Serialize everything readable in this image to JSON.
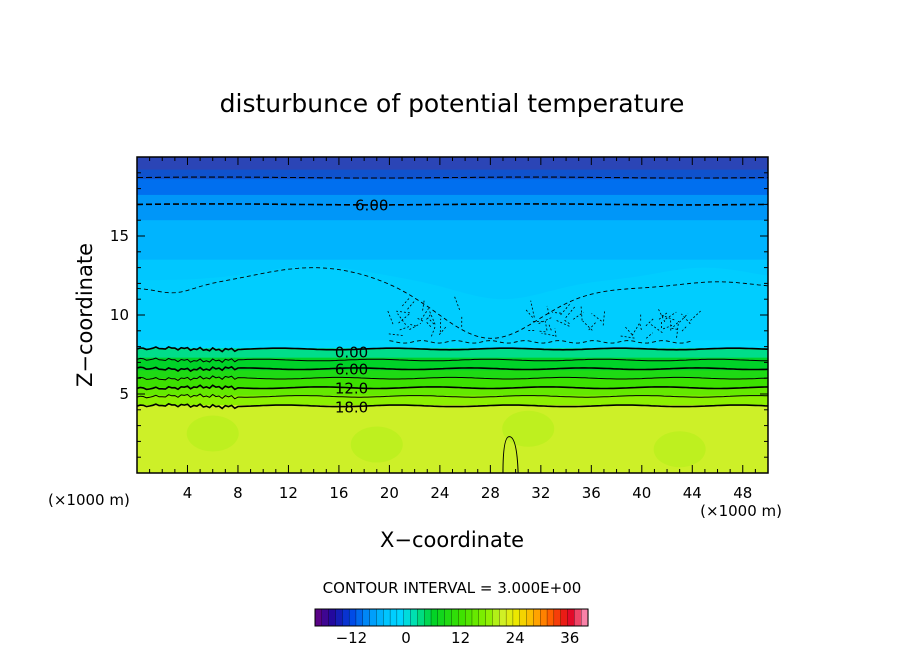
{
  "chart_data": {
    "type": "heatmap",
    "title": "disturbunce of potential temperature",
    "xlabel": "X−coordinate",
    "ylabel": "Z−coordinate",
    "x_unit_left": "(×1000 m)",
    "x_unit_right": "(×1000 m)",
    "xlim": [
      0,
      50
    ],
    "ylim": [
      0,
      20
    ],
    "x_ticks": [
      4,
      8,
      12,
      16,
      20,
      24,
      28,
      32,
      36,
      40,
      44,
      48
    ],
    "y_ticks": [
      5,
      10,
      15
    ],
    "contour_interval_text": "CONTOUR INTERVAL = 3.000E+00",
    "contour_labels": [
      {
        "text": "6.00",
        "x": 18.6,
        "z": 17.0
      },
      {
        "text": "0.00",
        "x": 17.0,
        "z": 7.7
      },
      {
        "text": "6.00",
        "x": 17.0,
        "z": 6.6
      },
      {
        "text": "12.0",
        "x": 17.0,
        "z": 5.4
      },
      {
        "text": "18.0",
        "x": 17.0,
        "z": 4.2
      }
    ],
    "colorbar": {
      "min": -20,
      "max": 40,
      "ticks": [
        -12,
        0,
        12,
        24,
        36
      ],
      "tick_labels": [
        "−12",
        "0",
        "12",
        "24",
        "36"
      ]
    },
    "field_bands": [
      {
        "z_top": 20.0,
        "z_bottom": 19.2,
        "value": -18
      },
      {
        "z_top": 19.2,
        "z_bottom": 18.6,
        "value": -15
      },
      {
        "z_top": 18.6,
        "z_bottom": 17.6,
        "value": -12
      },
      {
        "z_top": 17.6,
        "z_bottom": 16.0,
        "value": -9
      },
      {
        "z_top": 16.0,
        "z_bottom": 13.5,
        "value": -6
      },
      {
        "z_top": 13.5,
        "z_bottom": 8.4,
        "value": -3
      },
      {
        "z_top": 8.4,
        "z_bottom": 7.9,
        "value": -1
      },
      {
        "z_top": 7.9,
        "z_bottom": 7.3,
        "value": 3
      },
      {
        "z_top": 7.3,
        "z_bottom": 6.5,
        "value": 6
      },
      {
        "z_top": 6.5,
        "z_bottom": 6.0,
        "value": 9
      },
      {
        "z_top": 6.0,
        "z_bottom": 5.4,
        "value": 12
      },
      {
        "z_top": 5.4,
        "z_bottom": 4.9,
        "value": 15
      },
      {
        "z_top": 4.9,
        "z_bottom": 4.3,
        "value": 18
      },
      {
        "z_top": 4.3,
        "z_bottom": 0.0,
        "value": 21
      }
    ]
  }
}
